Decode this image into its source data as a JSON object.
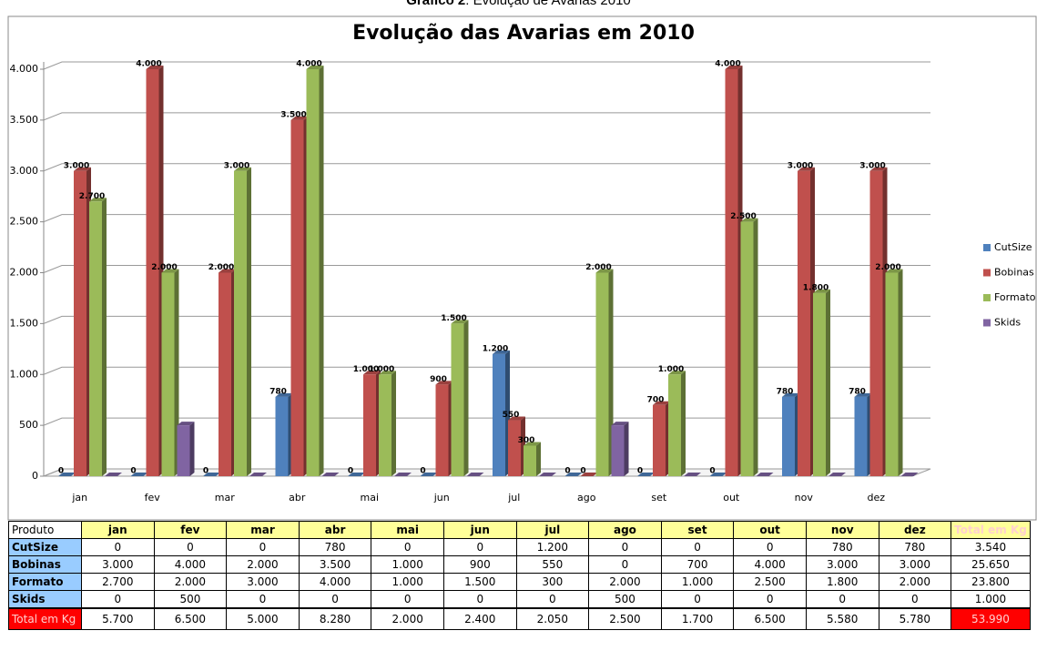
{
  "caption": {
    "label": "Gráfico 2",
    "text": ": Evolução de Avarias 2010"
  },
  "chart_data": {
    "type": "bar3d",
    "title": "Evolução das Avarias em 2010",
    "categories": [
      "jan",
      "fev",
      "mar",
      "abr",
      "mai",
      "jun",
      "jul",
      "ago",
      "set",
      "out",
      "nov",
      "dez"
    ],
    "series": [
      {
        "name": "CutSize",
        "color": "#4f81bd",
        "values": [
          0,
          0,
          0,
          780,
          0,
          0,
          1200,
          0,
          0,
          0,
          780,
          780
        ],
        "value_labels": [
          "0",
          "0",
          "0",
          "780",
          "0",
          "0",
          "1.200",
          "0",
          "0",
          "0",
          "780",
          "780"
        ]
      },
      {
        "name": "Bobinas",
        "color": "#c0504d",
        "values": [
          3000,
          4000,
          2000,
          3500,
          1000,
          900,
          550,
          0,
          700,
          4000,
          3000,
          3000
        ],
        "value_labels": [
          "3.000",
          "4.000",
          "2.000",
          "3.500",
          "1.000",
          "900",
          "550",
          "0",
          "700",
          "4.000",
          "3.000",
          "3.000"
        ]
      },
      {
        "name": "Formato",
        "color": "#9bbb59",
        "values": [
          2700,
          2000,
          3000,
          4000,
          1000,
          1500,
          300,
          2000,
          1000,
          2500,
          1800,
          2000
        ],
        "value_labels": [
          "2.700",
          "2.000",
          "3.000",
          "4.000",
          "1.000",
          "1.500",
          "300",
          "2.000",
          "1.000",
          "2.500",
          "1.800",
          "2.000"
        ]
      },
      {
        "name": "Skids",
        "color": "#8064a2",
        "values": [
          0,
          500,
          0,
          0,
          0,
          0,
          0,
          500,
          0,
          0,
          0,
          0
        ]
      }
    ],
    "ylim": [
      0,
      4000
    ],
    "yticks": [
      0,
      500,
      {
        "value": 1000,
        "label": "1.000"
      },
      {
        "value": 1500,
        "label": "1.500"
      },
      {
        "value": 2000,
        "label": "2.000"
      },
      {
        "value": 2500,
        "label": "2.500"
      },
      {
        "value": 3000,
        "label": "3.000"
      },
      {
        "value": 3500,
        "label": "3.500"
      },
      {
        "value": 4000,
        "label": "4.000"
      }
    ],
    "grid": true,
    "legend": "right"
  },
  "table": {
    "header": [
      "Produto",
      "jan",
      "fev",
      "mar",
      "abr",
      "mai",
      "jun",
      "jul",
      "ago",
      "set",
      "out",
      "nov",
      "dez",
      "Total em Kg"
    ],
    "rows": [
      [
        "CutSize",
        "0",
        "0",
        "0",
        "780",
        "0",
        "0",
        "1.200",
        "0",
        "0",
        "0",
        "780",
        "780",
        "3.540"
      ],
      [
        "Bobinas",
        "3.000",
        "4.000",
        "2.000",
        "3.500",
        "1.000",
        "900",
        "550",
        "0",
        "700",
        "4.000",
        "3.000",
        "3.000",
        "25.650"
      ],
      [
        "Formato",
        "2.700",
        "2.000",
        "3.000",
        "4.000",
        "1.000",
        "1.500",
        "300",
        "2.000",
        "1.000",
        "2.500",
        "1.800",
        "2.000",
        "23.800"
      ],
      [
        "Skids",
        "0",
        "500",
        "0",
        "0",
        "0",
        "0",
        "0",
        "500",
        "0",
        "0",
        "0",
        "0",
        "1.000"
      ],
      [
        "Total em Kg",
        "5.700",
        "6.500",
        "5.000",
        "8.280",
        "2.000",
        "2.400",
        "2.050",
        "2.500",
        "1.700",
        "6.500",
        "5.580",
        "5.780",
        "53.990"
      ]
    ]
  }
}
